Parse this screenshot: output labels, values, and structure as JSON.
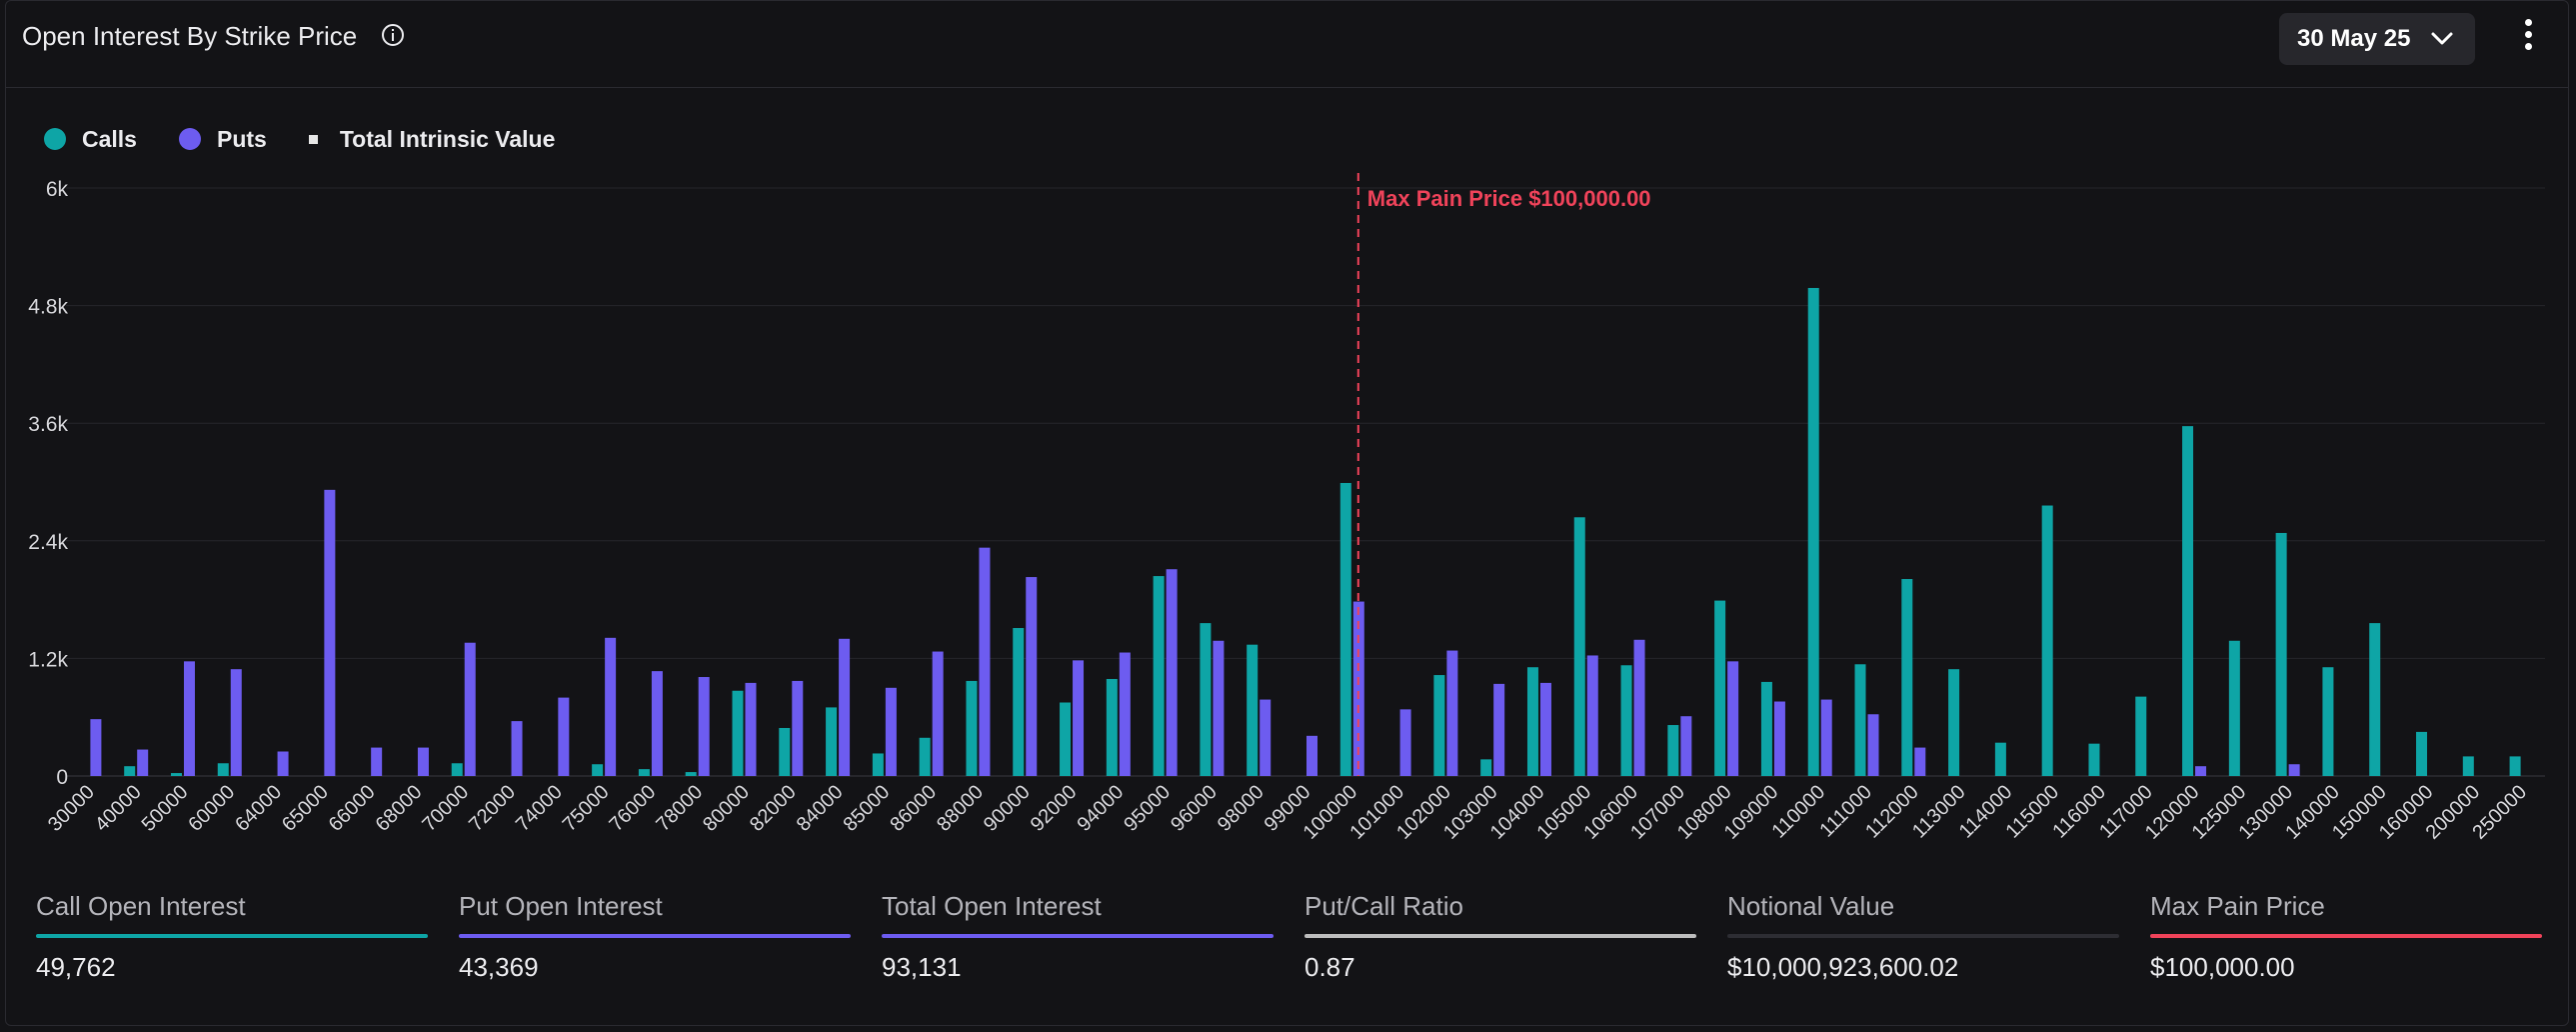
{
  "header": {
    "title": "Open Interest By Strike Price",
    "date_selected": "30 May 25"
  },
  "legend": {
    "calls": "Calls",
    "puts": "Puts",
    "intrinsic": "Total Intrinsic Value"
  },
  "colors": {
    "calls": "#0ea5a6",
    "puts": "#6d5cf0",
    "max_pain": "#f0435a",
    "ratio": "#bdbdbd",
    "notional": "#2d2d33"
  },
  "chart_data": {
    "type": "bar",
    "categories": [
      "30000",
      "40000",
      "50000",
      "60000",
      "64000",
      "65000",
      "66000",
      "68000",
      "70000",
      "72000",
      "74000",
      "75000",
      "76000",
      "78000",
      "80000",
      "82000",
      "84000",
      "85000",
      "86000",
      "88000",
      "90000",
      "92000",
      "94000",
      "95000",
      "96000",
      "98000",
      "99000",
      "100000",
      "101000",
      "102000",
      "103000",
      "104000",
      "105000",
      "106000",
      "107000",
      "108000",
      "109000",
      "110000",
      "111000",
      "112000",
      "113000",
      "114000",
      "115000",
      "116000",
      "117000",
      "120000",
      "125000",
      "130000",
      "140000",
      "150000",
      "160000",
      "200000",
      "250000"
    ],
    "series": [
      {
        "name": "Calls",
        "values": [
          0,
          100,
          30,
          130,
          0,
          0,
          0,
          0,
          130,
          0,
          0,
          120,
          70,
          40,
          870,
          490,
          700,
          230,
          390,
          970,
          1510,
          750,
          990,
          2040,
          1560,
          1340,
          0,
          2990,
          0,
          1030,
          170,
          1110,
          2640,
          1130,
          520,
          1790,
          960,
          4980,
          1140,
          2010,
          1090,
          340,
          2760,
          330,
          810,
          3570,
          1380,
          2480,
          1110,
          1560,
          450,
          200,
          200
        ]
      },
      {
        "name": "Puts",
        "values": [
          580,
          270,
          1170,
          1090,
          250,
          2920,
          290,
          290,
          1360,
          560,
          800,
          1410,
          1070,
          1010,
          950,
          970,
          1400,
          900,
          1270,
          2330,
          2030,
          1180,
          1260,
          2110,
          1380,
          780,
          410,
          1780,
          680,
          1280,
          940,
          950,
          1230,
          1390,
          610,
          1170,
          760,
          780,
          630,
          290,
          0,
          0,
          0,
          0,
          0,
          100,
          0,
          120,
          0,
          0,
          0,
          0,
          0
        ]
      }
    ],
    "yticks": [
      "0",
      "1.2k",
      "2.4k",
      "3.6k",
      "4.8k",
      "6k"
    ],
    "ylim": [
      0,
      6000
    ],
    "max_pain_strike": "100000",
    "max_pain_label": "Max Pain Price $100,000.00"
  },
  "stats": [
    {
      "label": "Call Open Interest",
      "value": "49,762",
      "color": "#0ea5a6"
    },
    {
      "label": "Put Open Interest",
      "value": "43,369",
      "color": "#6d5cf0"
    },
    {
      "label": "Total Open Interest",
      "value": "93,131",
      "color": "#6d5cf0"
    },
    {
      "label": "Put/Call Ratio",
      "value": "0.87",
      "color": "#bdbdbd"
    },
    {
      "label": "Notional Value",
      "value": "$10,000,923,600.02",
      "color": "#2d2d33"
    },
    {
      "label": "Max Pain Price",
      "value": "$100,000.00",
      "color": "#f0435a"
    }
  ]
}
